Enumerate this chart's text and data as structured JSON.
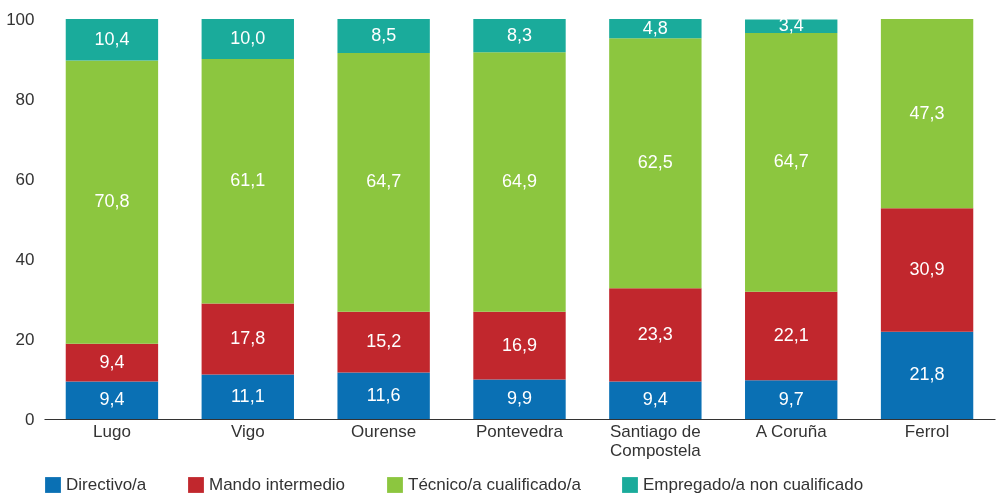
{
  "chart_data": {
    "type": "bar",
    "stacked": true,
    "categories": [
      "Lugo",
      "Vigo",
      "Ourense",
      "Pontevedra",
      "Santiago de Compostela",
      "A Coruña",
      "Ferrol"
    ],
    "series": [
      {
        "name": "Directivo/a",
        "color": "#0a70b4",
        "values": [
          9.4,
          11.1,
          11.6,
          9.9,
          9.4,
          9.7,
          21.8
        ],
        "value_labels": [
          "9,4",
          "11,1",
          "11,6",
          "9,9",
          "9,4",
          "9,7",
          "21,8"
        ]
      },
      {
        "name": "Mando intermedio",
        "color": "#c1272d",
        "values": [
          9.4,
          17.8,
          15.2,
          16.9,
          23.3,
          22.1,
          30.9
        ],
        "value_labels": [
          "9,4",
          "17,8",
          "15,2",
          "16,9",
          "23,3",
          "22,1",
          "30,9"
        ]
      },
      {
        "name": "Técnico/a cualificado/a",
        "color": "#8cc63f",
        "values": [
          70.8,
          61.1,
          64.7,
          64.9,
          62.5,
          64.7,
          47.3
        ],
        "value_labels": [
          "70,8",
          "61,1",
          "64,7",
          "64,9",
          "62,5",
          "64,7",
          "47,3"
        ]
      },
      {
        "name": "Empregado/a non cualificado",
        "color": "#1aab9b",
        "values": [
          10.4,
          10.0,
          8.5,
          8.3,
          4.8,
          3.4,
          null
        ],
        "value_labels": [
          "10,4",
          "10,0",
          "8,5",
          "8,3",
          "4,8",
          "3,4",
          null
        ]
      }
    ],
    "ylim": [
      0,
      100
    ],
    "yticks": [
      0,
      20,
      40,
      60,
      80,
      100
    ],
    "grid": false,
    "legend": "bottom"
  }
}
